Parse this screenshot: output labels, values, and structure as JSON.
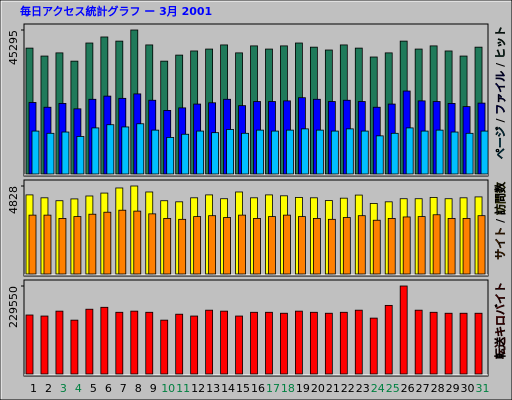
{
  "title": "毎日アクセス統計グラフ ー 3月 2001",
  "legend_separator": " / ",
  "chart_data": [
    {
      "type": "bar",
      "ylim": [
        0,
        45295
      ],
      "yticks": [
        45295
      ],
      "series": [
        {
          "name": "ページ",
          "color": "#00c0ff",
          "values": [
            13500,
            12800,
            13200,
            11800,
            14500,
            15500,
            14800,
            15800,
            13800,
            11500,
            12500,
            13500,
            13000,
            14000,
            12800,
            13800,
            13500,
            13800,
            14200,
            13800,
            13500,
            14200,
            13500,
            12000,
            12800,
            14500,
            13500,
            13800,
            13200,
            12800,
            13500
          ]
        },
        {
          "name": "ファイル",
          "color": "#0000ff",
          "values": [
            22500,
            21000,
            22200,
            20500,
            23500,
            24500,
            23800,
            25200,
            23200,
            20000,
            20800,
            22000,
            22400,
            23500,
            21500,
            22800,
            22800,
            23000,
            24000,
            23500,
            22800,
            23200,
            22800,
            21000,
            22000,
            26100,
            23000,
            22800,
            22200,
            21200,
            22300
          ]
        },
        {
          "name": "ヒット",
          "color": "#1f7a5a",
          "values": [
            39600,
            37100,
            38100,
            35500,
            41200,
            43100,
            41800,
            45295,
            40600,
            35500,
            37400,
            38700,
            39300,
            40600,
            38100,
            40300,
            39300,
            40300,
            41200,
            39900,
            39000,
            40600,
            39600,
            36800,
            38100,
            41800,
            39300,
            40300,
            38700,
            37100,
            39900
          ]
        }
      ]
    },
    {
      "type": "bar",
      "ylim": [
        0,
        4828
      ],
      "yticks": [
        4828
      ],
      "series": [
        {
          "name": "サイト",
          "color": "#ff8000",
          "values": [
            3230,
            3230,
            3050,
            3150,
            3280,
            3390,
            3500,
            3450,
            3300,
            3050,
            3000,
            3150,
            3200,
            3100,
            3230,
            3050,
            3150,
            3230,
            3150,
            3050,
            3000,
            3100,
            3200,
            2950,
            3050,
            3130,
            3150,
            3250,
            3050,
            3050,
            3200
          ]
        },
        {
          "name": "訪問数",
          "color": "#ffff00",
          "values": [
            4340,
            4180,
            4020,
            4120,
            4280,
            4440,
            4720,
            4828,
            4500,
            4020,
            3960,
            4180,
            4340,
            4130,
            4500,
            4180,
            4340,
            4290,
            4200,
            4180,
            4030,
            4160,
            4330,
            3870,
            3960,
            4130,
            4130,
            4200,
            4130,
            4180,
            4230
          ]
        }
      ]
    },
    {
      "type": "bar",
      "ylim": [
        0,
        229550
      ],
      "yticks": [
        229550
      ],
      "categories": [
        "1",
        "2",
        "3",
        "4",
        "5",
        "6",
        "7",
        "8",
        "9",
        "10",
        "11",
        "12",
        "13",
        "14",
        "15",
        "16",
        "17",
        "18",
        "19",
        "20",
        "21",
        "22",
        "23",
        "24",
        "25",
        "26",
        "27",
        "28",
        "29",
        "30",
        "31"
      ],
      "category_colors": [
        "#000000",
        "#000000",
        "#008040",
        "#008040",
        "#000000",
        "#000000",
        "#000000",
        "#000000",
        "#000000",
        "#008040",
        "#008040",
        "#000000",
        "#000000",
        "#000000",
        "#000000",
        "#000000",
        "#008040",
        "#008040",
        "#000000",
        "#000000",
        "#000000",
        "#000000",
        "#000000",
        "#008040",
        "#008040",
        "#000000",
        "#000000",
        "#000000",
        "#000000",
        "#000000",
        "#008040"
      ],
      "series": [
        {
          "name": "転送キロバイト",
          "color": "#ff0000",
          "values": [
            153900,
            151200,
            164000,
            140500,
            169000,
            174000,
            161000,
            164000,
            161000,
            140500,
            156000,
            151200,
            166500,
            164000,
            151200,
            161000,
            161000,
            158500,
            164000,
            161000,
            158500,
            161000,
            166500,
            145800,
            179000,
            229550,
            166500,
            161000,
            158500,
            158500,
            158500
          ]
        }
      ]
    }
  ]
}
